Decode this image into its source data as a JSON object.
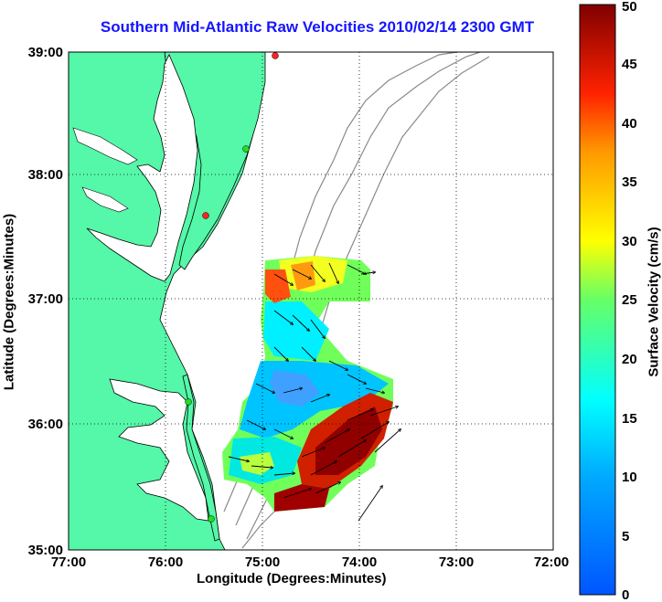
{
  "title": "Southern Mid-Atlantic Raw Velocities 2010/02/14 2300 GMT",
  "map": {
    "xlabel": "Longitude (Degrees:Minutes)",
    "ylabel": "Latitude (Degrees:Minutes)",
    "x_ticks": [
      "77:00",
      "76:00",
      "75:00",
      "74:00",
      "73:00",
      "72:00"
    ],
    "y_ticks": [
      "39:00",
      "38:00",
      "37:00",
      "36:00",
      "35:00"
    ],
    "lon_range": [
      -77,
      -72
    ],
    "lat_range": [
      35,
      39
    ],
    "grid": "dotted",
    "land_color": "#55f7a8",
    "bathymetry_color": "#8a8a8a"
  },
  "colorbar": {
    "label": "Surface Velocity (cm/s)",
    "ticks": [
      "0",
      "5",
      "10",
      "15",
      "20",
      "25",
      "30",
      "35",
      "40",
      "45",
      "50"
    ],
    "range": [
      0,
      50
    ],
    "colormap": "jet"
  },
  "stations": [
    {
      "name": "",
      "status": "red"
    },
    {
      "name": "",
      "status": "green"
    },
    {
      "name": "",
      "status": "red"
    },
    {
      "name": "",
      "status": "green"
    },
    {
      "name": "",
      "status": "green"
    }
  ],
  "colors": {
    "title": "#1515ff",
    "station_ok": "#22dd22",
    "station_off": "#ff2222",
    "vector": "#000000"
  }
}
